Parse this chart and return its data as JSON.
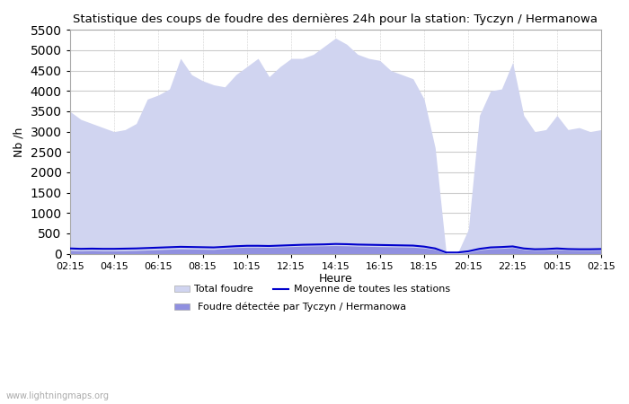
{
  "title": "Statistique des coups de foudre des dernières 24h pour la station: Tyczyn / Hermanowa",
  "xlabel": "Heure",
  "ylabel": "Nb /h",
  "ylim": [
    0,
    5500
  ],
  "yticks": [
    0,
    500,
    1000,
    1500,
    2000,
    2500,
    3000,
    3500,
    4000,
    4500,
    5000,
    5500
  ],
  "xtick_labels": [
    "02:15",
    "04:15",
    "06:15",
    "08:15",
    "10:15",
    "12:15",
    "14:15",
    "16:15",
    "18:15",
    "20:15",
    "22:15",
    "00:15",
    "02:15"
  ],
  "background_color": "#ffffff",
  "plot_bg_color": "#ffffff",
  "grid_color": "#cccccc",
  "watermark": "www.lightningmaps.org",
  "total_foudre_color": "#d0d4f0",
  "local_foudre_color": "#9090e0",
  "moyenne_color": "#0000cc",
  "x": [
    0,
    1,
    2,
    3,
    4,
    5,
    6,
    7,
    8,
    9,
    10,
    11,
    12,
    13,
    14,
    15,
    16,
    17,
    18,
    19,
    20,
    21,
    22,
    23,
    24,
    25,
    26,
    27,
    28,
    29,
    30,
    31,
    32,
    33,
    34,
    35,
    36,
    37,
    38,
    39,
    40,
    41,
    42,
    43,
    44,
    45,
    46,
    47,
    48
  ],
  "total_foudre": [
    3500,
    3300,
    3200,
    3100,
    3000,
    3050,
    3200,
    3800,
    3900,
    4050,
    4800,
    4400,
    4250,
    4150,
    4100,
    4400,
    4600,
    4800,
    4350,
    4600,
    4800,
    4800,
    4900,
    5100,
    5300,
    5150,
    4900,
    4800,
    4750,
    4500,
    4400,
    4300,
    3800,
    2600,
    0,
    0,
    600,
    3400,
    4000,
    4050,
    4700,
    3400,
    3000,
    3050,
    3400,
    3050,
    3100,
    3000,
    3050
  ],
  "local_foudre": [
    80,
    70,
    80,
    70,
    70,
    75,
    80,
    90,
    100,
    110,
    120,
    115,
    110,
    105,
    130,
    150,
    160,
    160,
    155,
    165,
    175,
    185,
    190,
    195,
    200,
    195,
    185,
    180,
    175,
    170,
    165,
    160,
    140,
    100,
    0,
    0,
    30,
    90,
    120,
    130,
    150,
    100,
    80,
    85,
    100,
    85,
    80,
    80,
    85
  ],
  "moyenne_line": [
    130,
    120,
    125,
    120,
    120,
    125,
    130,
    140,
    150,
    160,
    170,
    165,
    160,
    155,
    170,
    185,
    195,
    195,
    190,
    200,
    210,
    220,
    225,
    230,
    240,
    235,
    225,
    220,
    215,
    210,
    205,
    200,
    175,
    130,
    30,
    30,
    60,
    120,
    155,
    165,
    180,
    130,
    110,
    115,
    130,
    115,
    110,
    110,
    115
  ]
}
